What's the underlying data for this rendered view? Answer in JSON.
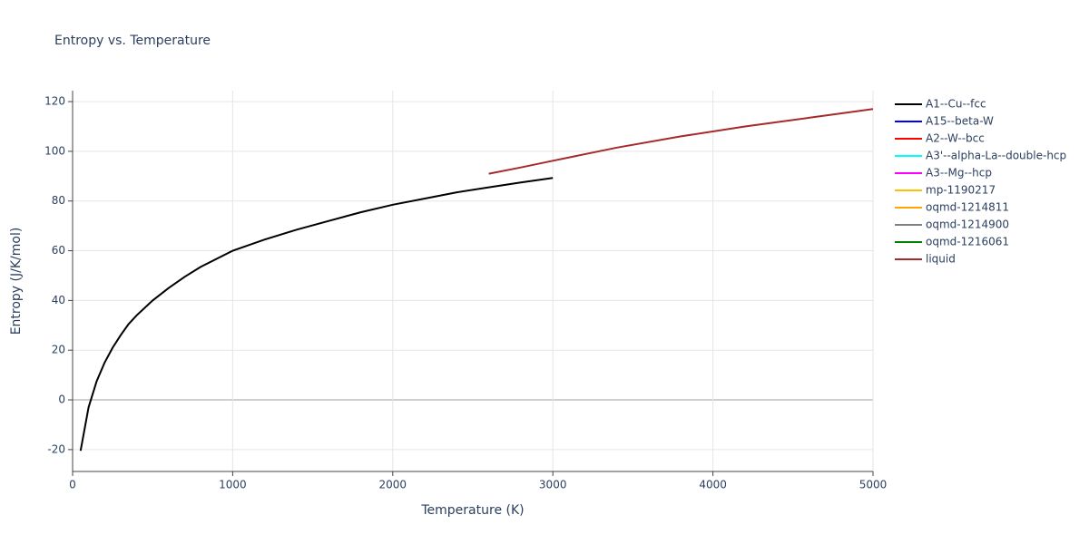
{
  "chart_data": {
    "type": "line",
    "title": "Entropy vs. Temperature",
    "x_label": "Temperature (K)",
    "y_label": "Entropy (J/K/mol)",
    "xlim": [
      0,
      5000
    ],
    "xticks": [
      0,
      1000,
      2000,
      3000,
      4000,
      5000
    ],
    "ylim": [
      -28.8,
      124.4
    ],
    "yticks": [
      -20,
      0,
      20,
      40,
      60,
      80,
      100,
      120
    ],
    "grid": true,
    "legend": "right",
    "series": [
      {
        "name": "A1--Cu--fcc",
        "color": "#000000",
        "x": [
          50,
          100,
          150,
          200,
          250,
          300,
          350,
          400,
          500,
          600,
          700,
          800,
          1000,
          1200,
          1400,
          1600,
          1800,
          2000,
          2200,
          2400,
          2600,
          2800,
          3000
        ],
        "values": [
          -20.5,
          -3,
          7.5,
          15,
          21,
          26,
          30.5,
          34,
          40,
          45,
          49.5,
          53.5,
          60,
          64.5,
          68.5,
          72,
          75.5,
          78.5,
          81,
          83.5,
          85.5,
          87.5,
          89.3
        ]
      },
      {
        "name": "A15--beta-W",
        "color": "#0000ff",
        "x": [],
        "values": []
      },
      {
        "name": "A2--W--bcc",
        "color": "#ff0000",
        "x": [],
        "values": []
      },
      {
        "name": "A3'--alpha-La--double-hcp",
        "color": "#00ffff",
        "x": [],
        "values": []
      },
      {
        "name": "A3--Mg--hcp",
        "color": "#ff00ff",
        "x": [],
        "values": []
      },
      {
        "name": "mp-1190217",
        "color": "#ffc000",
        "x": [],
        "values": []
      },
      {
        "name": "oqmd-1214811",
        "color": "#ffa500",
        "x": [],
        "values": []
      },
      {
        "name": "oqmd-1214900",
        "color": "#808080",
        "x": [],
        "values": []
      },
      {
        "name": "oqmd-1216061",
        "color": "#008000",
        "x": [],
        "values": []
      },
      {
        "name": "liquid",
        "color": "#a52a2a",
        "x": [
          2600,
          2800,
          3000,
          3400,
          3800,
          4200,
          4600,
          5000
        ],
        "values": [
          91,
          93.5,
          96.2,
          101.5,
          106,
          110,
          113.5,
          117
        ]
      }
    ]
  }
}
